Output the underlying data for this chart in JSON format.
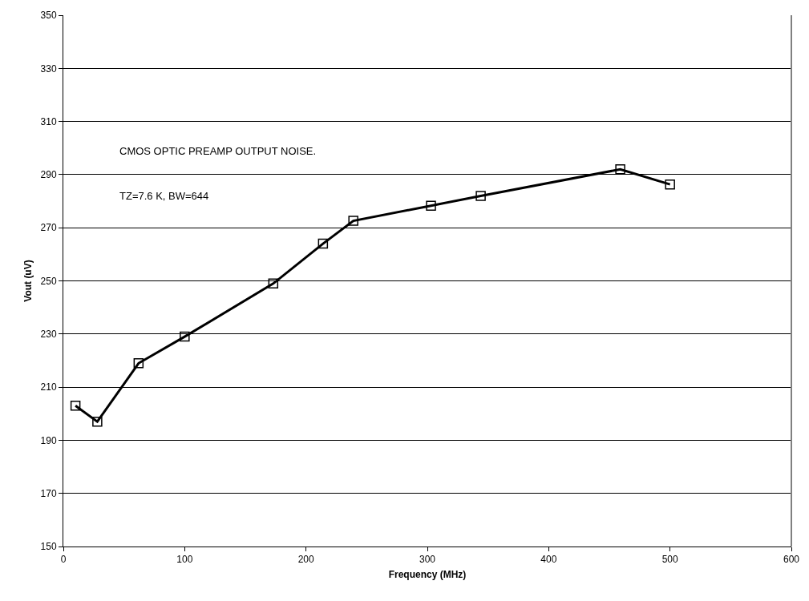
{
  "chart_data": {
    "type": "line",
    "xlabel": "Frequency (MHz)",
    "ylabel": "Vout (uV)",
    "annotations": [
      "CMOS OPTIC PREAMP OUTPUT NOISE.",
      "TZ=7.6 K, BW=644"
    ],
    "x": [
      10,
      28,
      62,
      100,
      173,
      214,
      239,
      303,
      344,
      459,
      500
    ],
    "series": [
      {
        "color": "#000000",
        "values": [
          203,
          197,
          219,
          229,
          249,
          264,
          272.6,
          278.3,
          282,
          292,
          286.3
        ]
      }
    ],
    "xlim": [
      0,
      600
    ],
    "xticks": [
      0,
      100,
      200,
      300,
      400,
      500,
      600
    ],
    "ylim": [
      150,
      350
    ],
    "yticks": [
      150,
      170,
      190,
      210,
      230,
      250,
      270,
      290,
      310,
      330,
      350
    ],
    "grid": "y",
    "marker": "square",
    "line_style": "solid"
  }
}
